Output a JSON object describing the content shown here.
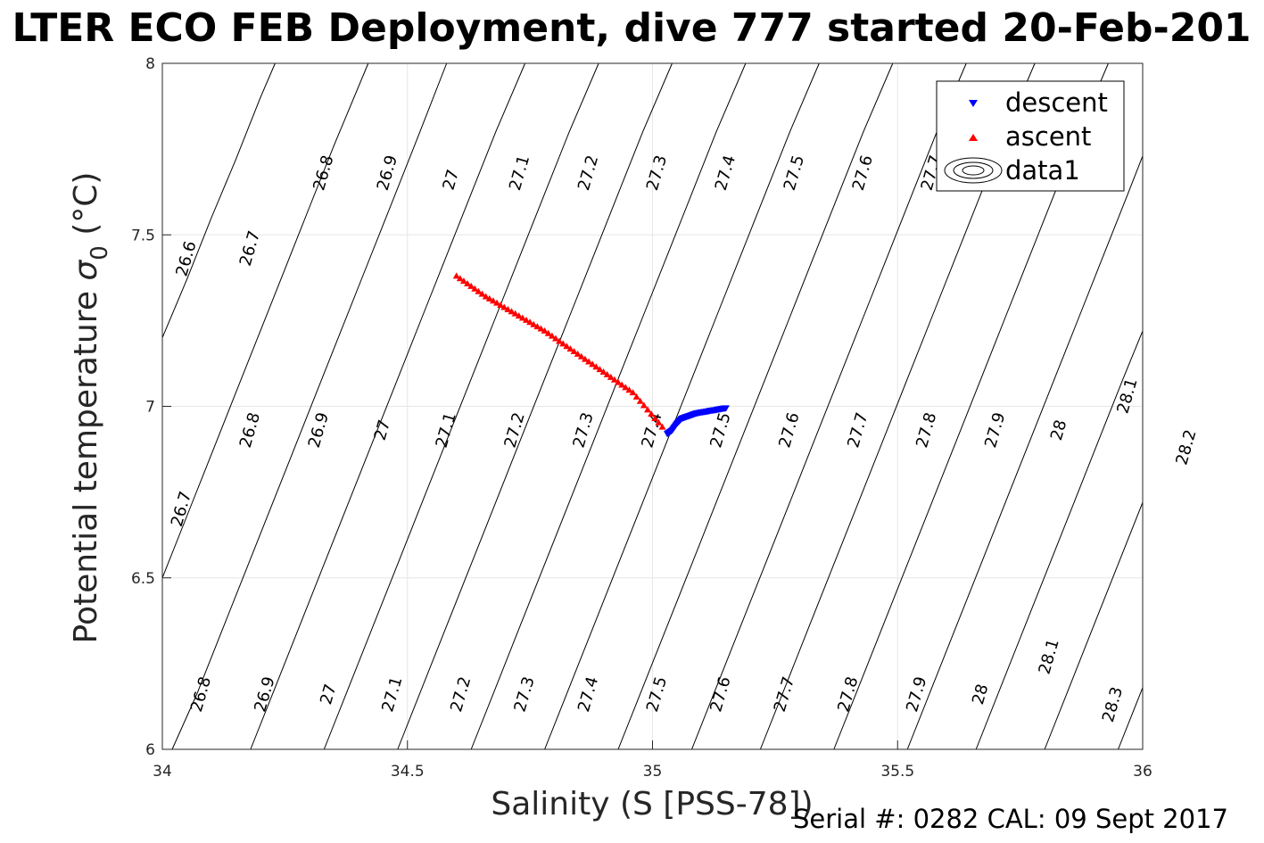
{
  "chart_data": {
    "type": "scatter",
    "title": "LTER ECO FEB Deployment, dive 777 started 20-Feb-201",
    "xlabel": "Salinity (S [PSS-78])",
    "ylabel_main": "Potential temperature ",
    "ylabel_sigma": "σ",
    "ylabel_sub": "0",
    "ylabel_unit": " (°C)",
    "xlim": [
      34,
      36
    ],
    "ylim": [
      6,
      8
    ],
    "x_ticks": [
      34,
      34.5,
      35,
      35.5,
      36
    ],
    "x_tick_labels": [
      "34",
      "34.5",
      "35",
      "35.5",
      "36"
    ],
    "y_ticks": [
      6,
      6.5,
      7,
      7.5,
      8
    ],
    "y_tick_labels": [
      "6",
      "6.5",
      "7",
      "7.5",
      "8"
    ],
    "grid": true,
    "legend_position": "top-right",
    "legend": [
      "descent",
      "ascent",
      "data1"
    ],
    "series": [
      {
        "name": "descent",
        "marker": "triangle-down",
        "color": "#0000ff",
        "points": [
          [
            35.03,
            6.92
          ],
          [
            35.04,
            6.93
          ],
          [
            35.05,
            6.95
          ],
          [
            35.06,
            6.965
          ],
          [
            35.07,
            6.97
          ],
          [
            35.08,
            6.975
          ],
          [
            35.09,
            6.98
          ],
          [
            35.1,
            6.983
          ],
          [
            35.11,
            6.985
          ],
          [
            35.12,
            6.988
          ],
          [
            35.13,
            6.99
          ],
          [
            35.14,
            6.993
          ],
          [
            35.15,
            6.995
          ]
        ]
      },
      {
        "name": "ascent",
        "marker": "triangle-up",
        "color": "#ff0000",
        "points": [
          [
            34.6,
            7.38
          ],
          [
            34.66,
            7.32
          ],
          [
            34.72,
            7.27
          ],
          [
            34.78,
            7.22
          ],
          [
            34.84,
            7.16
          ],
          [
            34.9,
            7.1
          ],
          [
            34.96,
            7.04
          ],
          [
            35.02,
            6.94
          ]
        ]
      }
    ],
    "contours": {
      "label": "data1",
      "color": "#000000",
      "series": [
        {
          "level": "26.6",
          "points": [
            [
              34.0,
              7.2
            ],
            [
              34.05,
              7.37
            ],
            [
              34.1,
              7.55
            ],
            [
              34.15,
              7.72
            ],
            [
              34.2,
              7.9
            ],
            [
              34.23,
              8.0
            ]
          ]
        },
        {
          "level": "26.7",
          "points": [
            [
              34.0,
              6.5
            ],
            [
              34.05,
              6.68
            ],
            [
              34.1,
              6.86
            ],
            [
              34.15,
              7.04
            ],
            [
              34.2,
              7.22
            ],
            [
              34.25,
              7.4
            ],
            [
              34.3,
              7.58
            ],
            [
              34.35,
              7.76
            ],
            [
              34.42,
              8.0
            ]
          ]
        },
        {
          "level": "26.8",
          "points": [
            [
              34.02,
              6.0
            ],
            [
              34.07,
              6.16
            ],
            [
              34.12,
              6.34
            ],
            [
              34.17,
              6.52
            ],
            [
              34.22,
              6.7
            ],
            [
              34.27,
              6.88
            ],
            [
              34.32,
              7.06
            ],
            [
              34.37,
              7.24
            ],
            [
              34.42,
              7.42
            ],
            [
              34.47,
              7.6
            ],
            [
              34.52,
              7.78
            ],
            [
              34.58,
              8.0
            ]
          ]
        },
        {
          "level": "26.9",
          "points": [
            [
              34.18,
              6.0
            ],
            [
              34.23,
              6.18
            ],
            [
              34.28,
              6.36
            ],
            [
              34.33,
              6.54
            ],
            [
              34.38,
              6.72
            ],
            [
              34.43,
              6.9
            ],
            [
              34.48,
              7.08
            ],
            [
              34.53,
              7.26
            ],
            [
              34.58,
              7.44
            ],
            [
              34.63,
              7.62
            ],
            [
              34.68,
              7.8
            ],
            [
              34.74,
              8.0
            ]
          ]
        },
        {
          "level": "27",
          "points": [
            [
              34.33,
              6.0
            ],
            [
              34.38,
              6.18
            ],
            [
              34.43,
              6.36
            ],
            [
              34.48,
              6.54
            ],
            [
              34.53,
              6.72
            ],
            [
              34.58,
              6.9
            ],
            [
              34.63,
              7.08
            ],
            [
              34.68,
              7.26
            ],
            [
              34.73,
              7.44
            ],
            [
              34.78,
              7.62
            ],
            [
              34.83,
              7.8
            ],
            [
              34.89,
              8.0
            ]
          ]
        },
        {
          "level": "27.1",
          "points": [
            [
              34.48,
              6.0
            ],
            [
              34.53,
              6.18
            ],
            [
              34.58,
              6.36
            ],
            [
              34.63,
              6.54
            ],
            [
              34.68,
              6.72
            ],
            [
              34.73,
              6.9
            ],
            [
              34.78,
              7.08
            ],
            [
              34.83,
              7.26
            ],
            [
              34.88,
              7.44
            ],
            [
              34.93,
              7.62
            ],
            [
              34.98,
              7.8
            ],
            [
              35.04,
              8.0
            ]
          ]
        },
        {
          "level": "27.2",
          "points": [
            [
              34.63,
              6.0
            ],
            [
              34.68,
              6.18
            ],
            [
              34.73,
              6.36
            ],
            [
              34.78,
              6.54
            ],
            [
              34.83,
              6.72
            ],
            [
              34.88,
              6.9
            ],
            [
              34.93,
              7.08
            ],
            [
              34.98,
              7.26
            ],
            [
              35.03,
              7.44
            ],
            [
              35.08,
              7.62
            ],
            [
              35.13,
              7.8
            ],
            [
              35.19,
              8.0
            ]
          ]
        },
        {
          "level": "27.3",
          "points": [
            [
              34.78,
              6.0
            ],
            [
              34.83,
              6.18
            ],
            [
              34.88,
              6.36
            ],
            [
              34.93,
              6.54
            ],
            [
              34.98,
              6.72
            ],
            [
              35.03,
              6.9
            ],
            [
              35.08,
              7.08
            ],
            [
              35.13,
              7.26
            ],
            [
              35.18,
              7.44
            ],
            [
              35.23,
              7.62
            ],
            [
              35.28,
              7.8
            ],
            [
              35.34,
              8.0
            ]
          ]
        },
        {
          "level": "27.4",
          "points": [
            [
              34.93,
              6.0
            ],
            [
              34.98,
              6.18
            ],
            [
              35.03,
              6.36
            ],
            [
              35.08,
              6.54
            ],
            [
              35.13,
              6.72
            ],
            [
              35.18,
              6.9
            ],
            [
              35.23,
              7.08
            ],
            [
              35.28,
              7.26
            ],
            [
              35.33,
              7.44
            ],
            [
              35.38,
              7.62
            ],
            [
              35.43,
              7.8
            ],
            [
              35.49,
              8.0
            ]
          ]
        },
        {
          "level": "27.5",
          "points": [
            [
              35.08,
              6.0
            ],
            [
              35.13,
              6.18
            ],
            [
              35.18,
              6.36
            ],
            [
              35.23,
              6.54
            ],
            [
              35.28,
              6.72
            ],
            [
              35.33,
              6.9
            ],
            [
              35.38,
              7.08
            ],
            [
              35.43,
              7.26
            ],
            [
              35.48,
              7.44
            ],
            [
              35.53,
              7.62
            ],
            [
              35.58,
              7.8
            ],
            [
              35.64,
              8.0
            ]
          ]
        },
        {
          "level": "27.6",
          "points": [
            [
              35.22,
              6.0
            ],
            [
              35.27,
              6.18
            ],
            [
              35.32,
              6.36
            ],
            [
              35.37,
              6.54
            ],
            [
              35.42,
              6.72
            ],
            [
              35.47,
              6.9
            ],
            [
              35.52,
              7.08
            ],
            [
              35.57,
              7.26
            ],
            [
              35.62,
              7.44
            ],
            [
              35.67,
              7.62
            ],
            [
              35.72,
              7.8
            ],
            [
              35.78,
              8.0
            ]
          ]
        },
        {
          "level": "27.7",
          "points": [
            [
              35.37,
              6.0
            ],
            [
              35.42,
              6.18
            ],
            [
              35.47,
              6.36
            ],
            [
              35.52,
              6.54
            ],
            [
              35.57,
              6.72
            ],
            [
              35.62,
              6.9
            ],
            [
              35.67,
              7.08
            ],
            [
              35.72,
              7.26
            ],
            [
              35.77,
              7.44
            ],
            [
              35.82,
              7.62
            ],
            [
              35.87,
              7.8
            ],
            [
              35.93,
              8.0
            ]
          ]
        },
        {
          "level": "27.8",
          "points": [
            [
              35.52,
              6.0
            ],
            [
              35.57,
              6.18
            ],
            [
              35.62,
              6.36
            ],
            [
              35.67,
              6.54
            ],
            [
              35.72,
              6.72
            ],
            [
              35.77,
              6.9
            ],
            [
              35.82,
              7.08
            ],
            [
              35.87,
              7.26
            ],
            [
              35.92,
              7.44
            ],
            [
              35.97,
              7.62
            ],
            [
              36.0,
              7.73
            ]
          ]
        },
        {
          "level": "27.9",
          "points": [
            [
              35.66,
              6.0
            ],
            [
              35.71,
              6.18
            ],
            [
              35.76,
              6.36
            ],
            [
              35.81,
              6.54
            ],
            [
              35.86,
              6.72
            ],
            [
              35.91,
              6.9
            ],
            [
              35.96,
              7.08
            ],
            [
              36.0,
              7.22
            ]
          ]
        },
        {
          "level": "28",
          "points": [
            [
              35.8,
              6.0
            ],
            [
              35.85,
              6.18
            ],
            [
              35.9,
              6.36
            ],
            [
              35.95,
              6.54
            ],
            [
              36.0,
              6.72
            ]
          ]
        },
        {
          "level": "28.1",
          "points": [
            [
              35.95,
              6.0
            ],
            [
              36.0,
              6.18
            ]
          ]
        }
      ],
      "labels": [
        {
          "text": "26.6",
          "x": 34.05,
          "y": 7.43
        },
        {
          "text": "26.7",
          "x": 34.18,
          "y": 7.46
        },
        {
          "text": "26.8",
          "x": 34.33,
          "y": 7.68
        },
        {
          "text": "26.9",
          "x": 34.46,
          "y": 7.68
        },
        {
          "text": "27",
          "x": 34.59,
          "y": 7.66
        },
        {
          "text": "27.1",
          "x": 34.73,
          "y": 7.68
        },
        {
          "text": "27.2",
          "x": 34.87,
          "y": 7.68
        },
        {
          "text": "27.3",
          "x": 35.01,
          "y": 7.68
        },
        {
          "text": "27.4",
          "x": 35.15,
          "y": 7.68
        },
        {
          "text": "27.5",
          "x": 35.29,
          "y": 7.68
        },
        {
          "text": "27.6",
          "x": 35.43,
          "y": 7.68
        },
        {
          "text": "27.7",
          "x": 35.57,
          "y": 7.68
        },
        {
          "text": "26.7",
          "x": 34.04,
          "y": 6.7
        },
        {
          "text": "26.8",
          "x": 34.18,
          "y": 6.93
        },
        {
          "text": "26.9",
          "x": 34.32,
          "y": 6.93
        },
        {
          "text": "27",
          "x": 34.45,
          "y": 6.93
        },
        {
          "text": "27.1",
          "x": 34.58,
          "y": 6.93
        },
        {
          "text": "27.2",
          "x": 34.72,
          "y": 6.93
        },
        {
          "text": "27.3",
          "x": 34.86,
          "y": 6.93
        },
        {
          "text": "27.4",
          "x": 35.0,
          "y": 6.93
        },
        {
          "text": "27.5",
          "x": 35.14,
          "y": 6.93
        },
        {
          "text": "27.6",
          "x": 35.28,
          "y": 6.93
        },
        {
          "text": "27.7",
          "x": 35.42,
          "y": 6.93
        },
        {
          "text": "27.8",
          "x": 35.56,
          "y": 6.93
        },
        {
          "text": "27.9",
          "x": 35.7,
          "y": 6.93
        },
        {
          "text": "28",
          "x": 35.83,
          "y": 6.93
        },
        {
          "text": "28.1",
          "x": 35.97,
          "y": 7.03
        },
        {
          "text": "28.2",
          "x": 36.09,
          "y": 6.88
        },
        {
          "text": "26.8",
          "x": 34.08,
          "y": 6.16
        },
        {
          "text": "26.9",
          "x": 34.21,
          "y": 6.16
        },
        {
          "text": "27",
          "x": 34.34,
          "y": 6.16
        },
        {
          "text": "27.1",
          "x": 34.47,
          "y": 6.16
        },
        {
          "text": "27.2",
          "x": 34.61,
          "y": 6.16
        },
        {
          "text": "27.3",
          "x": 34.74,
          "y": 6.16
        },
        {
          "text": "27.4",
          "x": 34.87,
          "y": 6.16
        },
        {
          "text": "27.5",
          "x": 35.01,
          "y": 6.16
        },
        {
          "text": "27.6",
          "x": 35.14,
          "y": 6.16
        },
        {
          "text": "27.7",
          "x": 35.27,
          "y": 6.16
        },
        {
          "text": "27.8",
          "x": 35.4,
          "y": 6.16
        },
        {
          "text": "27.9",
          "x": 35.54,
          "y": 6.16
        },
        {
          "text": "28",
          "x": 35.67,
          "y": 6.16
        },
        {
          "text": "28.1",
          "x": 35.81,
          "y": 6.27
        },
        {
          "text": "28.3",
          "x": 35.94,
          "y": 6.13
        }
      ]
    }
  },
  "footer": {
    "serial_text": "Serial #: 0282  CAL: 09 Sept 2017"
  }
}
